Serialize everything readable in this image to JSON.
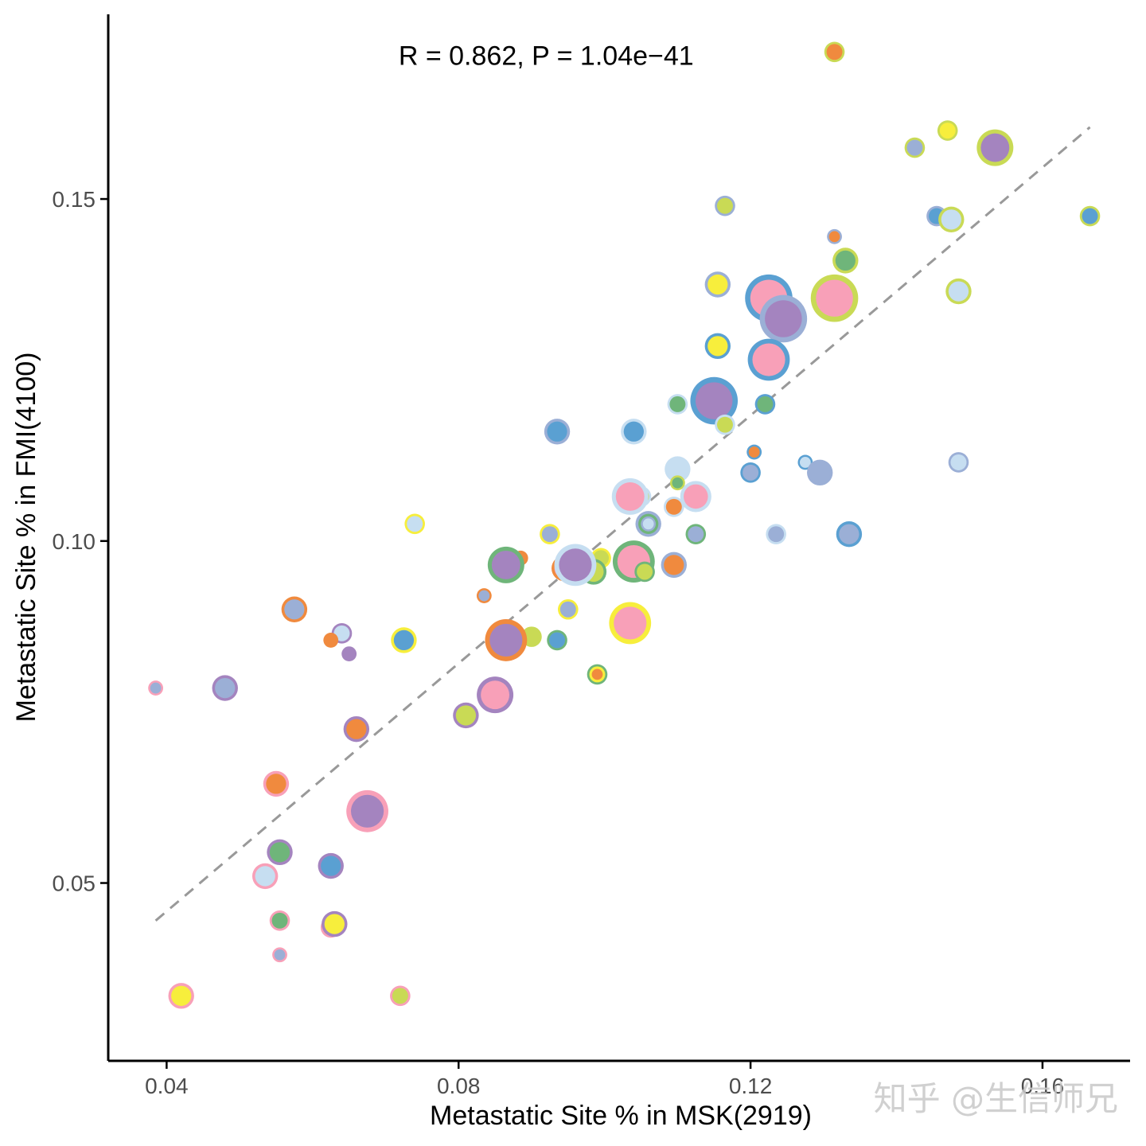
{
  "chart_data": {
    "type": "scatter",
    "title": "",
    "xlabel": "Metastatic Site % in MSK(2919)",
    "ylabel": "Metastatic Site % in FMI(4100)",
    "xlim": [
      0.032,
      0.172
    ],
    "ylim": [
      0.024,
      0.177
    ],
    "xticks": [
      0.04,
      0.08,
      0.12,
      0.16
    ],
    "xtick_labels": [
      "0.04",
      "0.08",
      "0.12",
      "0.16"
    ],
    "yticks": [
      0.05,
      0.1,
      0.15
    ],
    "ytick_labels": [
      "0.05",
      "0.10",
      "0.15"
    ],
    "annotation": "R = 0.862, P = 1.04e−41",
    "annotation_pos": [
      0.092,
      0.171
    ],
    "trend_line": {
      "style": "dashed",
      "color": "#999999",
      "x": [
        0.0385,
        0.1665
      ],
      "y": [
        0.0445,
        0.1605
      ]
    },
    "grid": false,
    "legend": "none",
    "watermark": "知乎 @生信师兄",
    "colors": {
      "P": "#F8A0B8",
      "O": "#F08A3E",
      "G": "#6FB57A",
      "B": "#5AA0D2",
      "L": "#C6DEF1",
      "V": "#A484BF",
      "Y": "#F7EE3C",
      "C": "#C9DA55",
      "S": "#9BAFD6"
    },
    "points": [
      {
        "x": 0.1315,
        "y": 0.1715,
        "size": 2,
        "outer": "C",
        "inner": "O"
      },
      {
        "x": 0.147,
        "y": 0.16,
        "size": 2,
        "outer": "C",
        "inner": "Y"
      },
      {
        "x": 0.1425,
        "y": 0.1575,
        "size": 2,
        "outer": "C",
        "inner": "S"
      },
      {
        "x": 0.1535,
        "y": 0.1575,
        "size": 5,
        "outer": "C",
        "inner": "V"
      },
      {
        "x": 0.1165,
        "y": 0.149,
        "size": 2,
        "outer": "S",
        "inner": "C"
      },
      {
        "x": 0.1455,
        "y": 0.1475,
        "size": 2,
        "outer": "S",
        "inner": "B"
      },
      {
        "x": 0.1475,
        "y": 0.147,
        "size": 3,
        "outer": "C",
        "inner": "L"
      },
      {
        "x": 0.1665,
        "y": 0.1475,
        "size": 2,
        "outer": "C",
        "inner": "B"
      },
      {
        "x": 0.1315,
        "y": 0.1445,
        "size": 1,
        "outer": "S",
        "inner": "O"
      },
      {
        "x": 0.133,
        "y": 0.141,
        "size": 3,
        "outer": "C",
        "inner": "G"
      },
      {
        "x": 0.1155,
        "y": 0.1375,
        "size": 3,
        "outer": "S",
        "inner": "Y"
      },
      {
        "x": 0.1485,
        "y": 0.1365,
        "size": 3,
        "outer": "C",
        "inner": "L"
      },
      {
        "x": 0.1225,
        "y": 0.1355,
        "size": 7,
        "outer": "B",
        "inner": "P"
      },
      {
        "x": 0.1315,
        "y": 0.1355,
        "size": 7,
        "outer": "C",
        "inner": "P"
      },
      {
        "x": 0.1245,
        "y": 0.1325,
        "size": 7,
        "outer": "S",
        "inner": "V"
      },
      {
        "x": 0.1155,
        "y": 0.1285,
        "size": 3,
        "outer": "B",
        "inner": "Y"
      },
      {
        "x": 0.1225,
        "y": 0.1265,
        "size": 6,
        "outer": "B",
        "inner": "P"
      },
      {
        "x": 0.115,
        "y": 0.1205,
        "size": 7,
        "outer": "B",
        "inner": "V"
      },
      {
        "x": 0.11,
        "y": 0.12,
        "size": 2,
        "outer": "L",
        "inner": "G"
      },
      {
        "x": 0.122,
        "y": 0.12,
        "size": 2,
        "outer": "B",
        "inner": "G"
      },
      {
        "x": 0.1165,
        "y": 0.117,
        "size": 2,
        "outer": "L",
        "inner": "C"
      },
      {
        "x": 0.0935,
        "y": 0.116,
        "size": 3,
        "outer": "S",
        "inner": "B"
      },
      {
        "x": 0.104,
        "y": 0.116,
        "size": 3,
        "outer": "L",
        "inner": "B"
      },
      {
        "x": 0.1205,
        "y": 0.113,
        "size": 1,
        "outer": "B",
        "inner": "O"
      },
      {
        "x": 0.1275,
        "y": 0.1115,
        "size": 1,
        "outer": "B",
        "inner": "L"
      },
      {
        "x": 0.1485,
        "y": 0.1115,
        "size": 2,
        "outer": "S",
        "inner": "L"
      },
      {
        "x": 0.11,
        "y": 0.1105,
        "size": 3,
        "outer": "L",
        "inner": "L"
      },
      {
        "x": 0.12,
        "y": 0.11,
        "size": 2,
        "outer": "B",
        "inner": "S"
      },
      {
        "x": 0.1295,
        "y": 0.11,
        "size": 3,
        "outer": "S",
        "inner": "S"
      },
      {
        "x": 0.11,
        "y": 0.1085,
        "size": 1,
        "outer": "C",
        "inner": "G"
      },
      {
        "x": 0.105,
        "y": 0.1065,
        "size": 2,
        "outer": "L",
        "inner": "C"
      },
      {
        "x": 0.1035,
        "y": 0.1065,
        "size": 5,
        "outer": "L",
        "inner": "P"
      },
      {
        "x": 0.1135,
        "y": 0.1065,
        "size": 1,
        "outer": "L",
        "inner": "Y"
      },
      {
        "x": 0.1125,
        "y": 0.1065,
        "size": 4,
        "outer": "L",
        "inner": "P"
      },
      {
        "x": 0.1095,
        "y": 0.105,
        "size": 2,
        "outer": "L",
        "inner": "O"
      },
      {
        "x": 0.106,
        "y": 0.1025,
        "size": 3,
        "outer": "S",
        "inner": "G"
      },
      {
        "x": 0.106,
        "y": 0.1025,
        "size": 1,
        "outer": "S",
        "inner": "L"
      },
      {
        "x": 0.074,
        "y": 0.1025,
        "size": 2,
        "outer": "Y",
        "inner": "L"
      },
      {
        "x": 0.0925,
        "y": 0.101,
        "size": 2,
        "outer": "Y",
        "inner": "S"
      },
      {
        "x": 0.1125,
        "y": 0.101,
        "size": 2,
        "outer": "G",
        "inner": "S"
      },
      {
        "x": 0.1235,
        "y": 0.101,
        "size": 2,
        "outer": "L",
        "inner": "S"
      },
      {
        "x": 0.1335,
        "y": 0.101,
        "size": 3,
        "outer": "B",
        "inner": "S"
      },
      {
        "x": 0.0885,
        "y": 0.0975,
        "size": 1,
        "outer": "O",
        "inner": "O"
      },
      {
        "x": 0.0995,
        "y": 0.0975,
        "size": 2,
        "outer": "Y",
        "inner": "C"
      },
      {
        "x": 0.0865,
        "y": 0.0965,
        "size": 5,
        "outer": "G",
        "inner": "V"
      },
      {
        "x": 0.0945,
        "y": 0.096,
        "size": 3,
        "outer": "O",
        "inner": "P"
      },
      {
        "x": 0.0985,
        "y": 0.0955,
        "size": 3,
        "outer": "G",
        "inner": "C"
      },
      {
        "x": 0.104,
        "y": 0.097,
        "size": 6,
        "outer": "G",
        "inner": "P"
      },
      {
        "x": 0.1055,
        "y": 0.0955,
        "size": 2,
        "outer": "G",
        "inner": "C"
      },
      {
        "x": 0.1095,
        "y": 0.0965,
        "size": 3,
        "outer": "S",
        "inner": "O"
      },
      {
        "x": 0.096,
        "y": 0.0965,
        "size": 6,
        "outer": "L",
        "inner": "V"
      },
      {
        "x": 0.0835,
        "y": 0.092,
        "size": 1,
        "outer": "O",
        "inner": "S"
      },
      {
        "x": 0.0575,
        "y": 0.09,
        "size": 3,
        "outer": "O",
        "inner": "S"
      },
      {
        "x": 0.095,
        "y": 0.09,
        "size": 2,
        "outer": "Y",
        "inner": "S"
      },
      {
        "x": 0.1035,
        "y": 0.088,
        "size": 6,
        "outer": "Y",
        "inner": "P"
      },
      {
        "x": 0.064,
        "y": 0.0865,
        "size": 2,
        "outer": "V",
        "inner": "L"
      },
      {
        "x": 0.0625,
        "y": 0.0855,
        "size": 1,
        "outer": "O",
        "inner": "O"
      },
      {
        "x": 0.09,
        "y": 0.086,
        "size": 2,
        "outer": "C",
        "inner": "C"
      },
      {
        "x": 0.0725,
        "y": 0.0855,
        "size": 3,
        "outer": "Y",
        "inner": "B"
      },
      {
        "x": 0.0935,
        "y": 0.0855,
        "size": 2,
        "outer": "G",
        "inner": "B"
      },
      {
        "x": 0.0865,
        "y": 0.0855,
        "size": 6,
        "outer": "O",
        "inner": "V"
      },
      {
        "x": 0.065,
        "y": 0.0835,
        "size": 1,
        "outer": "V",
        "inner": "V"
      },
      {
        "x": 0.099,
        "y": 0.0805,
        "size": 2,
        "outer": "G",
        "inner": "Y"
      },
      {
        "x": 0.099,
        "y": 0.0805,
        "size": 1,
        "outer": "Y",
        "inner": "O"
      },
      {
        "x": 0.0385,
        "y": 0.0785,
        "size": 1,
        "outer": "P",
        "inner": "S"
      },
      {
        "x": 0.048,
        "y": 0.0785,
        "size": 3,
        "outer": "V",
        "inner": "S"
      },
      {
        "x": 0.085,
        "y": 0.0775,
        "size": 5,
        "outer": "V",
        "inner": "P"
      },
      {
        "x": 0.081,
        "y": 0.0745,
        "size": 3,
        "outer": "V",
        "inner": "C"
      },
      {
        "x": 0.066,
        "y": 0.0725,
        "size": 3,
        "outer": "V",
        "inner": "O"
      },
      {
        "x": 0.055,
        "y": 0.0645,
        "size": 3,
        "outer": "P",
        "inner": "O"
      },
      {
        "x": 0.0675,
        "y": 0.0605,
        "size": 6,
        "outer": "P",
        "inner": "V"
      },
      {
        "x": 0.0555,
        "y": 0.0545,
        "size": 3,
        "outer": "V",
        "inner": "G"
      },
      {
        "x": 0.0625,
        "y": 0.0525,
        "size": 3,
        "outer": "V",
        "inner": "B"
      },
      {
        "x": 0.0535,
        "y": 0.051,
        "size": 3,
        "outer": "P",
        "inner": "L"
      },
      {
        "x": 0.0555,
        "y": 0.0445,
        "size": 2,
        "outer": "P",
        "inner": "G"
      },
      {
        "x": 0.0625,
        "y": 0.0435,
        "size": 2,
        "outer": "P",
        "inner": "O"
      },
      {
        "x": 0.063,
        "y": 0.044,
        "size": 3,
        "outer": "V",
        "inner": "Y"
      },
      {
        "x": 0.0555,
        "y": 0.0395,
        "size": 1,
        "outer": "P",
        "inner": "S"
      },
      {
        "x": 0.042,
        "y": 0.0335,
        "size": 3,
        "outer": "P",
        "inner": "Y"
      },
      {
        "x": 0.072,
        "y": 0.0335,
        "size": 2,
        "outer": "P",
        "inner": "C"
      }
    ]
  }
}
